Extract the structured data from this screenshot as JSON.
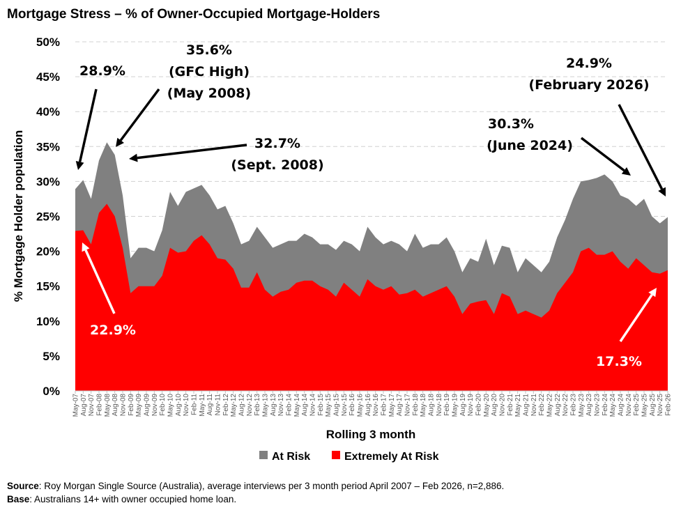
{
  "title": "Mortgage Stress – % of Owner-Occupied Mortgage-Holders",
  "chart_data": {
    "type": "area",
    "title": "Mortgage Stress – % of Owner-Occupied Mortgage-Holders",
    "xlabel": "Rolling 3 month",
    "ylabel": "% Mortgage Holder population",
    "ylim": [
      0,
      50
    ],
    "yticks": [
      "0%",
      "5%",
      "10%",
      "15%",
      "20%",
      "25%",
      "30%",
      "35%",
      "40%",
      "45%",
      "50%"
    ],
    "grid": true,
    "legend_placement": "bottom",
    "categories": [
      "May-07",
      "Aug-07",
      "Nov-07",
      "Feb-08",
      "May-08",
      "Aug-08",
      "Nov-08",
      "Feb-09",
      "May-09",
      "Aug-09",
      "Nov-09",
      "Feb-10",
      "May-10",
      "Aug-10",
      "Nov-10",
      "Feb-11",
      "May-11",
      "Aug-11",
      "Nov-11",
      "Feb-12",
      "May-12",
      "Aug-12",
      "Nov-12",
      "Feb-13",
      "May-13",
      "Aug-13",
      "Nov-13",
      "Feb-14",
      "May-14",
      "Aug-14",
      "Nov-14",
      "Feb-15",
      "May-15",
      "Aug-15",
      "Nov-15",
      "Feb-16",
      "May-16",
      "Aug-16",
      "Nov-16",
      "Feb-17",
      "May-17",
      "Aug-17",
      "Nov-17",
      "Feb-18",
      "May-18",
      "Aug-18",
      "Nov-18",
      "Feb-19",
      "May-19",
      "Aug-19",
      "Nov-19",
      "Feb-20",
      "May-20",
      "Aug-20",
      "Nov-20",
      "Feb-21",
      "May-21",
      "Aug-21",
      "Nov-21",
      "Feb-22",
      "May-22",
      "Aug-22",
      "Nov-22",
      "Feb-23",
      "May-23",
      "Aug-23",
      "Nov-23",
      "Feb-24",
      "May-24",
      "Aug-24",
      "Nov-24",
      "Feb-25",
      "May-25",
      "Aug-25",
      "Nov-25",
      "Feb-26"
    ],
    "series": [
      {
        "name": "At Risk",
        "color": "#808080",
        "values": [
          28.9,
          30.2,
          27.5,
          33.0,
          35.6,
          33.8,
          28.0,
          19.0,
          20.5,
          20.5,
          20.0,
          23.0,
          28.5,
          26.5,
          28.5,
          29.0,
          29.5,
          28.0,
          26.0,
          26.5,
          24.0,
          21.0,
          21.5,
          23.5,
          22.0,
          20.5,
          21.0,
          21.5,
          21.5,
          22.5,
          22.0,
          21.0,
          21.0,
          20.2,
          21.5,
          21.0,
          20.0,
          23.5,
          22.0,
          21.0,
          21.5,
          21.0,
          20.0,
          22.5,
          20.5,
          21.0,
          21.0,
          22.0,
          20.0,
          17.0,
          19.0,
          18.5,
          21.8,
          18.0,
          20.8,
          20.5,
          17.0,
          19.0,
          18.0,
          17.0,
          18.5,
          22.0,
          24.5,
          27.5,
          30.0,
          30.2,
          30.5,
          31.0,
          30.0,
          28.0,
          27.5,
          26.5,
          27.5,
          25.0,
          24.0,
          24.9
        ]
      },
      {
        "name": "Extremely At Risk",
        "color": "#ff0000",
        "values": [
          22.9,
          23.0,
          21.0,
          25.5,
          26.8,
          25.0,
          20.5,
          14.0,
          15.0,
          15.0,
          15.0,
          16.5,
          20.5,
          19.8,
          20.0,
          21.5,
          22.3,
          21.0,
          19.0,
          18.8,
          17.5,
          14.8,
          14.8,
          17.0,
          14.5,
          13.5,
          14.2,
          14.5,
          15.5,
          15.8,
          15.8,
          15.0,
          14.5,
          13.5,
          15.5,
          14.5,
          13.5,
          16.0,
          15.0,
          14.5,
          15.0,
          13.8,
          14.0,
          14.5,
          13.5,
          14.0,
          14.5,
          15.0,
          13.5,
          11.0,
          12.5,
          12.8,
          13.0,
          11.0,
          14.0,
          13.5,
          11.0,
          11.5,
          11.0,
          10.5,
          11.5,
          14.0,
          15.5,
          17.0,
          20.0,
          20.5,
          19.5,
          19.5,
          20.0,
          18.5,
          17.5,
          19.0,
          18.0,
          17.0,
          16.8,
          17.3
        ]
      }
    ],
    "annotations": [
      {
        "lines": [
          "28.9%"
        ],
        "color": "#000000"
      },
      {
        "lines": [
          "35.6%",
          "(GFC High)",
          "(May 2008)"
        ],
        "color": "#000000"
      },
      {
        "lines": [
          "32.7%",
          "(Sept. 2008)"
        ],
        "color": "#000000"
      },
      {
        "lines": [
          "22.9%"
        ],
        "color": "#ffffff"
      },
      {
        "lines": [
          "30.3%",
          "(June 2024)"
        ],
        "color": "#000000"
      },
      {
        "lines": [
          "24.9%",
          "(February 2026)"
        ],
        "color": "#000000"
      },
      {
        "lines": [
          "17.3%"
        ],
        "color": "#ffffff"
      }
    ]
  },
  "footer": {
    "source_label": "Source",
    "source_text": ": Roy Morgan Single Source (Australia), average interviews per 3 month period April 2007 – Feb 2026, n=2,886.",
    "base_label": "Base",
    "base_text": ": Australians 14+ with owner occupied home loan."
  }
}
